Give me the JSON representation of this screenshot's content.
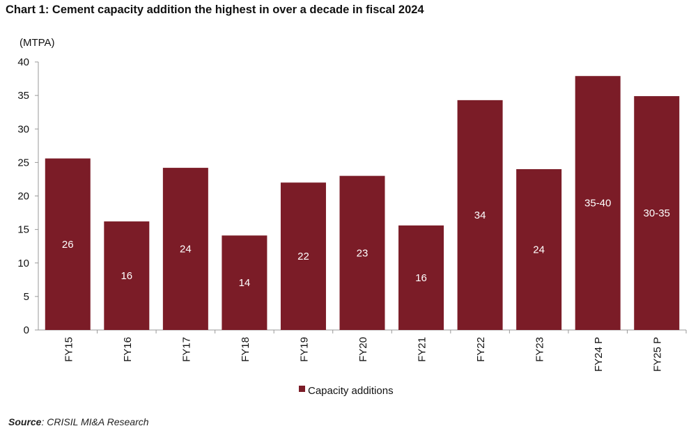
{
  "title": "Chart 1: Cement capacity addition the highest in over a decade in fiscal 2024",
  "source_label": "Source",
  "source_text": ": CRISIL MI&A Research",
  "chart_data": {
    "type": "bar",
    "title": "Chart 1: Cement capacity addition the highest in over a decade in fiscal 2024",
    "ylabel": "(MTPA)",
    "xlabel": "",
    "ylim": [
      0,
      40
    ],
    "yticks": [
      0,
      5,
      10,
      15,
      20,
      25,
      30,
      35,
      40
    ],
    "grid": false,
    "legend": "bottom",
    "categories": [
      "FY15",
      "FY16",
      "FY17",
      "FY18",
      "FY19",
      "FY20",
      "FY21",
      "FY22",
      "FY23",
      "FY24 P",
      "FY25 P"
    ],
    "series": [
      {
        "name": "Capacity additions",
        "color": "#7b1c27",
        "values": [
          25.6,
          16.2,
          24.2,
          14.1,
          22.0,
          23.0,
          15.6,
          34.3,
          24.0,
          37.9,
          34.9
        ],
        "labels": [
          "26",
          "16",
          "24",
          "14",
          "22",
          "23",
          "16",
          "34",
          "24",
          "35-40",
          "30-35"
        ]
      }
    ]
  }
}
